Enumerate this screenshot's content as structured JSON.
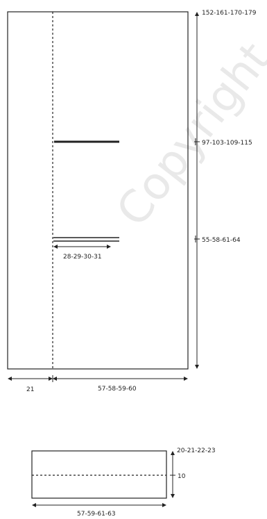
{
  "watermark": "Copyright",
  "main_panel": {
    "height_total": "152-161-170-179",
    "height_upper_mark": "97-103-109-115",
    "height_lower_mark": "55-58-61-64",
    "slit_width": "28-29-30-31",
    "left_width": "21",
    "right_width": "57-58-59-60"
  },
  "small_panel": {
    "height": "20-21-22-23",
    "fold_height": "10",
    "width": "57-59-61-63"
  },
  "colors": {
    "line": "#222222",
    "watermark": "#e9e9e9"
  }
}
